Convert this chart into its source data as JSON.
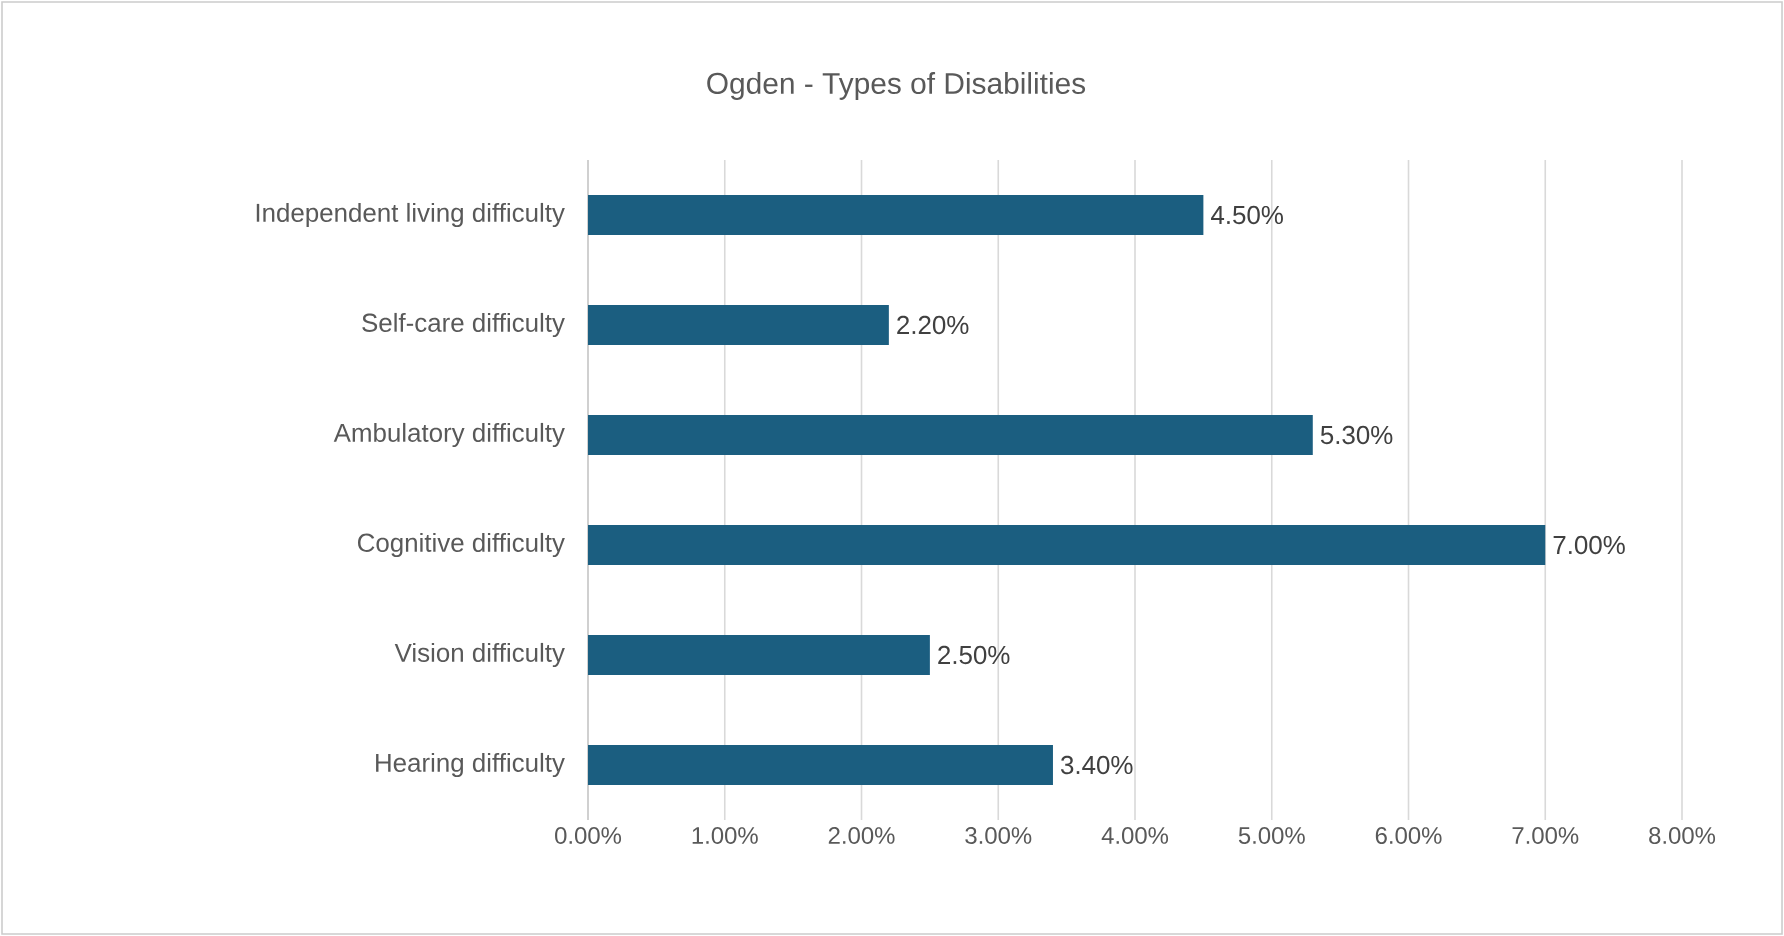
{
  "chart_data": {
    "type": "bar",
    "orientation": "horizontal",
    "title": "Ogden - Types of Disabilities",
    "categories": [
      "Independent living difficulty",
      "Self-care difficulty",
      "Ambulatory difficulty",
      "Cognitive difficulty",
      "Vision difficulty",
      "Hearing difficulty"
    ],
    "values": [
      4.5,
      2.2,
      5.3,
      7.0,
      2.5,
      3.4
    ],
    "value_labels": [
      "4.50%",
      "2.20%",
      "5.30%",
      "7.00%",
      "2.50%",
      "3.40%"
    ],
    "color": "#1b5e80",
    "xlim": [
      0,
      8
    ],
    "xticks": [
      {
        "value": 0,
        "label": "0.00%"
      },
      {
        "value": 1,
        "label": "1.00%"
      },
      {
        "value": 2,
        "label": "2.00%"
      },
      {
        "value": 3,
        "label": "3.00%"
      },
      {
        "value": 4,
        "label": "4.00%"
      },
      {
        "value": 5,
        "label": "5.00%"
      },
      {
        "value": 6,
        "label": "6.00%"
      },
      {
        "value": 7,
        "label": "7.00%"
      },
      {
        "value": 8,
        "label": "8.00%"
      }
    ],
    "grid": "x"
  }
}
